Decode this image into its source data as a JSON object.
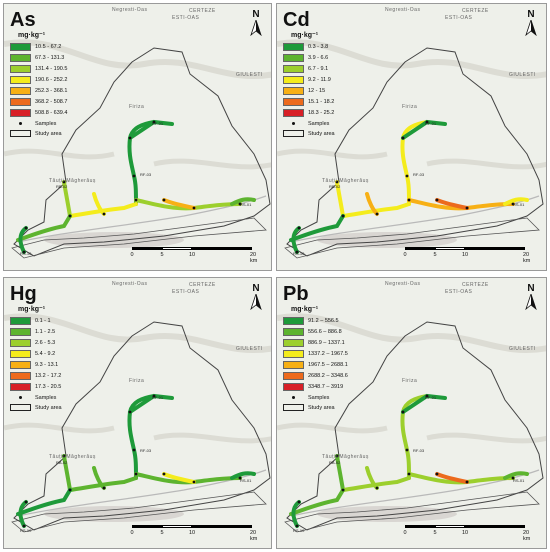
{
  "map_labels": {
    "north": "N",
    "samples": "Samples",
    "study_area": "Study area",
    "scale_ticks": [
      "0",
      "5",
      "10",
      "20 km"
    ],
    "places": [
      {
        "name": "Negresti-Oas",
        "kind": "town"
      },
      {
        "name": "CERTEZE",
        "kind": "village"
      },
      {
        "name": "ESTI-OAS",
        "kind": "village"
      },
      {
        "name": "GIULESTI",
        "kind": "village"
      },
      {
        "name": "Tăuții-Măgherăuș",
        "kind": "town"
      },
      {
        "name": "Băiuț",
        "kind": "village"
      },
      {
        "name": "Firiza",
        "kind": "village"
      }
    ],
    "sites": [
      "RF-01",
      "RF-02",
      "RF-03",
      "RF-04",
      "RF-05",
      "RS-01",
      "RS-05",
      "RS-12",
      "RS-23",
      "RL-01",
      "RL-02",
      "RB-02",
      "RB-01",
      "VU-01",
      "RS-10"
    ]
  },
  "panels": [
    {
      "metal": "As",
      "unit": "mg·kg⁻¹",
      "classes": [
        {
          "range": "10.5 - 67.2",
          "color": "#1e9a3a"
        },
        {
          "range": "67.3 - 131.3",
          "color": "#5db42f"
        },
        {
          "range": "131.4 - 190.5",
          "color": "#9ccf2d"
        },
        {
          "range": "190.6 - 252.2",
          "color": "#f4ec1c"
        },
        {
          "range": "252.3 - 368.1",
          "color": "#f7b015"
        },
        {
          "range": "368.2 - 508.7",
          "color": "#ec6a1d"
        },
        {
          "range": "508.8 - 639.4",
          "color": "#d71f26"
        }
      ]
    },
    {
      "metal": "Cd",
      "unit": "mg·kg⁻¹",
      "classes": [
        {
          "range": "0.3 - 3.8",
          "color": "#1e9a3a"
        },
        {
          "range": "3.9 - 6.6",
          "color": "#5db42f"
        },
        {
          "range": "6.7 - 9.1",
          "color": "#9ccf2d"
        },
        {
          "range": "9.2 - 11.9",
          "color": "#f4ec1c"
        },
        {
          "range": "12 - 15",
          "color": "#f7b015"
        },
        {
          "range": "15.1 - 18.2",
          "color": "#ec6a1d"
        },
        {
          "range": "18.3 - 25.2",
          "color": "#d71f26"
        }
      ]
    },
    {
      "metal": "Hg",
      "unit": "mg·kg⁻¹",
      "classes": [
        {
          "range": "0.1 - 1",
          "color": "#1e9a3a"
        },
        {
          "range": "1.1 - 2.5",
          "color": "#5db42f"
        },
        {
          "range": "2.6 - 5.3",
          "color": "#9ccf2d"
        },
        {
          "range": "5.4 - 9.2",
          "color": "#f4ec1c"
        },
        {
          "range": "9.3 - 13.1",
          "color": "#f7b015"
        },
        {
          "range": "13.2 - 17.2",
          "color": "#ec6a1d"
        },
        {
          "range": "17.3 - 20.5",
          "color": "#d71f26"
        }
      ]
    },
    {
      "metal": "Pb",
      "unit": "mg·kg⁻¹",
      "classes": [
        {
          "range": "91.2 – 556.5",
          "color": "#1e9a3a"
        },
        {
          "range": "556.6 – 886.8",
          "color": "#5db42f"
        },
        {
          "range": "886.9 – 1337.1",
          "color": "#9ccf2d"
        },
        {
          "range": "1337.2 – 1967.5",
          "color": "#f4ec1c"
        },
        {
          "range": "1967.5 – 2688.1",
          "color": "#f7b015"
        },
        {
          "range": "2688.2 – 3348.6",
          "color": "#ec6a1d"
        },
        {
          "range": "3348.7 – 3919",
          "color": "#d71f26"
        }
      ]
    }
  ]
}
